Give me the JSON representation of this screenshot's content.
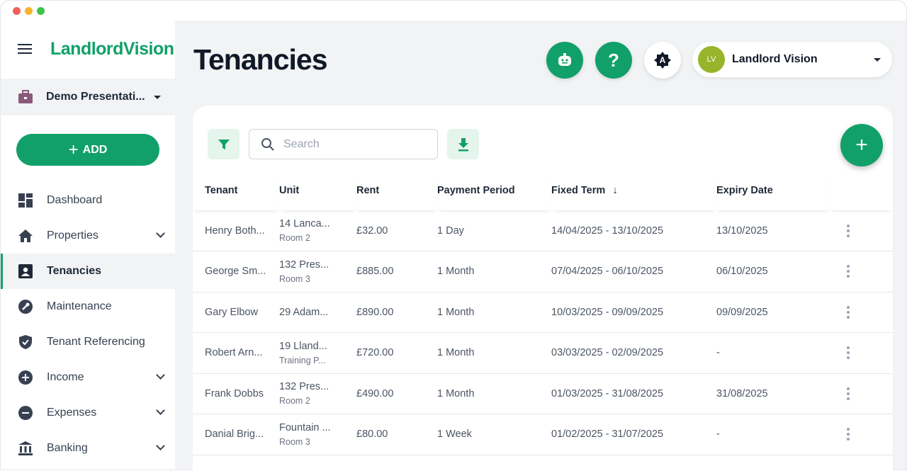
{
  "window": {
    "controls": [
      "close",
      "minimize",
      "maximize"
    ]
  },
  "sidebar": {
    "logo": "LandlordVision",
    "org": "Demo Presentati...",
    "add_label": "ADD",
    "items": [
      {
        "label": "Dashboard",
        "icon": "dashboard-icon",
        "expand": false
      },
      {
        "label": "Properties",
        "icon": "home-icon",
        "expand": true
      },
      {
        "label": "Tenancies",
        "icon": "contact-card-icon",
        "expand": false,
        "active": true
      },
      {
        "label": "Maintenance",
        "icon": "wrench-icon",
        "expand": false
      },
      {
        "label": "Tenant Referencing",
        "icon": "shield-icon",
        "expand": false
      },
      {
        "label": "Income",
        "icon": "plus-circle-icon",
        "expand": true
      },
      {
        "label": "Expenses",
        "icon": "minus-circle-icon",
        "expand": true
      },
      {
        "label": "Banking",
        "icon": "bank-icon",
        "expand": true
      }
    ]
  },
  "header": {
    "title": "Tenancies",
    "user_initials": "LV",
    "user_name": "Landlord Vision",
    "help": "?",
    "accessibility": "A"
  },
  "toolbar": {
    "search_placeholder": "Search"
  },
  "table": {
    "columns": [
      "Tenant",
      "Unit",
      "Rent",
      "Payment Period",
      "Fixed Term",
      "Expiry Date"
    ],
    "sort_column": "Fixed Term",
    "sort_direction": "descending",
    "rows": [
      {
        "tenant": "Henry Both...",
        "unit": "14 Lanca...",
        "unit_sub": "Room 2",
        "rent": "£32.00",
        "period": "1 Day",
        "term": "14/04/2025 - 13/10/2025",
        "expiry": "13/10/2025"
      },
      {
        "tenant": "George Sm...",
        "unit": "132 Pres...",
        "unit_sub": "Room 3",
        "rent": "£885.00",
        "period": "1 Month",
        "term": "07/04/2025 - 06/10/2025",
        "expiry": "06/10/2025"
      },
      {
        "tenant": "Gary Elbow",
        "unit": "29 Adam...",
        "unit_sub": "",
        "rent": "£890.00",
        "period": "1 Month",
        "term": "10/03/2025 - 09/09/2025",
        "expiry": "09/09/2025"
      },
      {
        "tenant": "Robert Arn...",
        "unit": "19 Lland...",
        "unit_sub": "Training P...",
        "rent": "£720.00",
        "period": "1 Month",
        "term": "03/03/2025 - 02/09/2025",
        "expiry": "-"
      },
      {
        "tenant": "Frank Dobbs",
        "unit": "132 Pres...",
        "unit_sub": "Room 2",
        "rent": "£490.00",
        "period": "1 Month",
        "term": "01/03/2025 - 31/08/2025",
        "expiry": "31/08/2025"
      },
      {
        "tenant": "Danial Brig...",
        "unit": "Fountain ...",
        "unit_sub": "Room 3",
        "rent": "£80.00",
        "period": "1 Week",
        "term": "01/02/2025 - 31/07/2025",
        "expiry": "-"
      }
    ]
  },
  "colors": {
    "brand": "#12a06a",
    "avatar": "#97b52a",
    "org_icon": "#8a5a7a"
  }
}
